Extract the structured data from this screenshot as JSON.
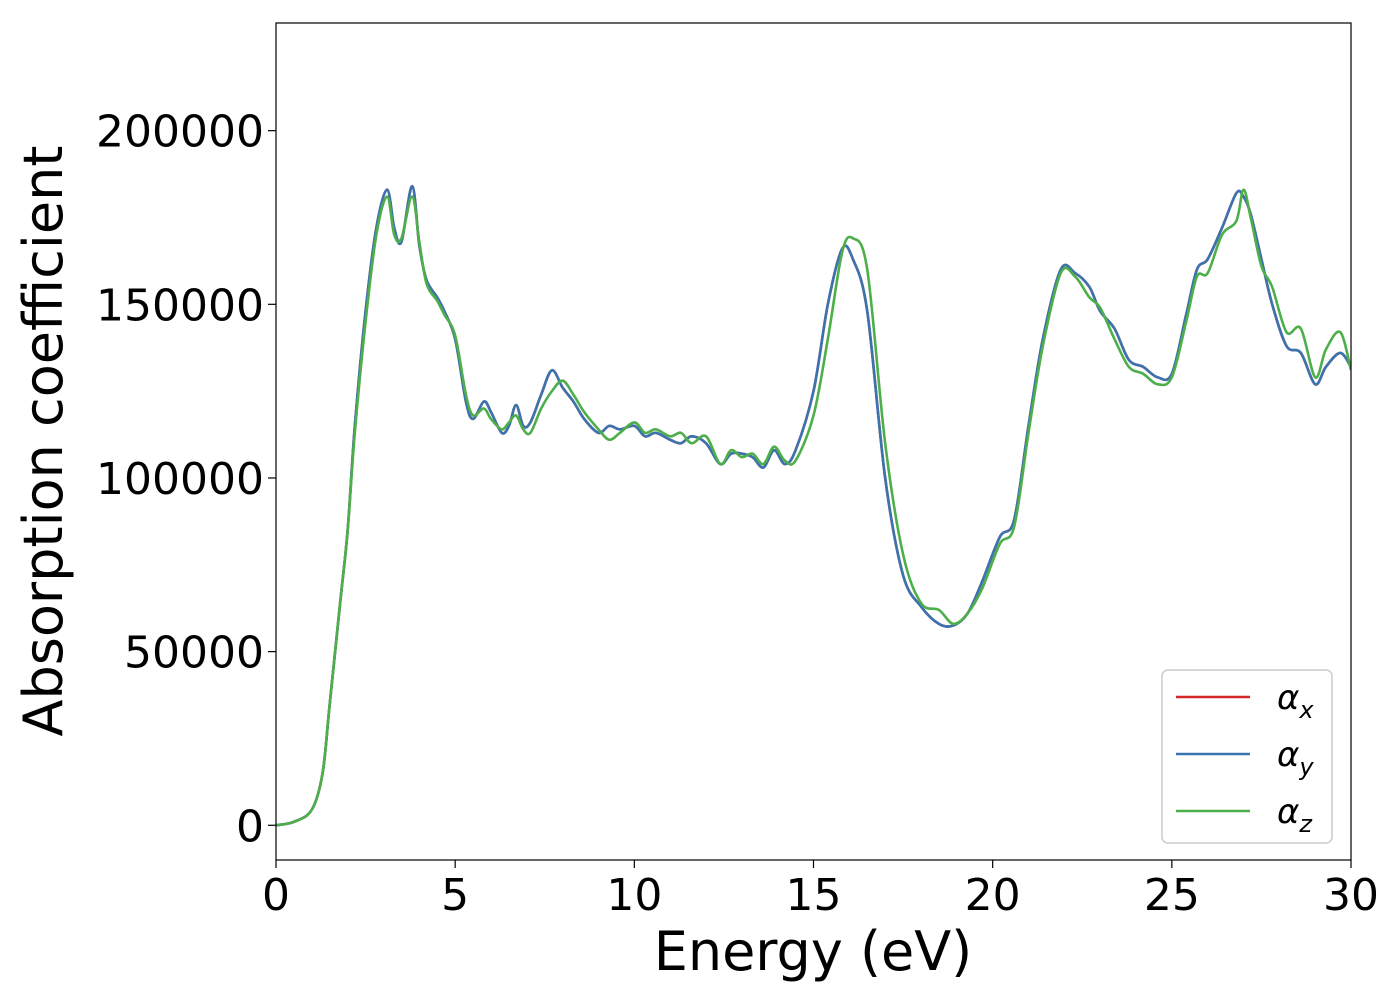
{
  "chart_data": {
    "type": "line",
    "title": "",
    "xlabel": "Energy (eV)",
    "ylabel": "Absorption coefficient",
    "xlim": [
      0,
      30
    ],
    "ylim": [
      -10000,
      231000
    ],
    "xticks": [
      0,
      5,
      10,
      15,
      20,
      25,
      30
    ],
    "yticks": [
      0,
      50000,
      100000,
      150000,
      200000
    ],
    "grid": false,
    "legend_position": "lower-right",
    "series": [
      {
        "name": "α_x",
        "label_main": "α",
        "label_sub": "x",
        "color": "#d62728",
        "x": [
          0,
          0.5,
          1,
          1.3,
          1.5,
          1.8,
          2,
          2.2,
          2.5,
          2.8,
          3.1,
          3.3,
          3.5,
          3.8,
          4,
          4.2,
          4.5,
          4.7,
          5,
          5.3,
          5.5,
          5.8,
          6,
          6.3,
          6.5,
          6.7,
          6.9,
          7.1,
          7.4,
          7.7,
          8,
          8.3,
          8.6,
          9,
          9.3,
          9.6,
          10,
          10.3,
          10.6,
          11,
          11.3,
          11.6,
          12,
          12.4,
          12.7,
          13,
          13.3,
          13.6,
          13.9,
          14.2,
          14.5,
          15,
          15.4,
          15.8,
          16.1,
          16.5,
          17,
          17.5,
          18,
          18.5,
          18.9,
          19.3,
          19.7,
          20.2,
          20.6,
          21,
          21.4,
          21.9,
          22.3,
          22.7,
          23,
          23.4,
          23.8,
          24.2,
          24.6,
          25,
          25.4,
          25.7,
          26,
          26.4,
          26.8,
          27,
          27.2,
          27.5,
          27.8,
          28.2,
          28.6,
          29,
          29.3,
          29.7,
          30
        ],
        "y": [
          0,
          1000,
          4500,
          15000,
          35000,
          65000,
          85000,
          115000,
          148000,
          172000,
          183000,
          172000,
          168000,
          184000,
          167000,
          157000,
          152000,
          148000,
          140000,
          122000,
          117000,
          122000,
          119000,
          113000,
          115000,
          121000,
          115000,
          116000,
          124000,
          131000,
          126000,
          122000,
          117000,
          113000,
          115000,
          114000,
          115000,
          112000,
          113000,
          111000,
          110000,
          112000,
          110000,
          104000,
          107000,
          107000,
          106000,
          103000,
          108000,
          104000,
          108000,
          125000,
          150000,
          166000,
          163000,
          148000,
          100000,
          72000,
          63000,
          58000,
          57500,
          61000,
          70000,
          83000,
          88000,
          115000,
          140000,
          160000,
          159000,
          155000,
          148000,
          143000,
          134000,
          132000,
          129000,
          130000,
          147000,
          160000,
          163000,
          172000,
          182000,
          181000,
          176000,
          163000,
          150000,
          138000,
          136000,
          127000,
          132000,
          136000,
          132000
        ]
      },
      {
        "name": "α_y",
        "label_main": "α",
        "label_sub": "y",
        "color": "#3a74b0",
        "x": [
          0,
          0.5,
          1,
          1.3,
          1.5,
          1.8,
          2,
          2.2,
          2.5,
          2.8,
          3.1,
          3.3,
          3.5,
          3.8,
          4,
          4.2,
          4.5,
          4.7,
          5,
          5.3,
          5.5,
          5.8,
          6,
          6.3,
          6.5,
          6.7,
          6.9,
          7.1,
          7.4,
          7.7,
          8,
          8.3,
          8.6,
          9,
          9.3,
          9.6,
          10,
          10.3,
          10.6,
          11,
          11.3,
          11.6,
          12,
          12.4,
          12.7,
          13,
          13.3,
          13.6,
          13.9,
          14.2,
          14.5,
          15,
          15.4,
          15.8,
          16.1,
          16.5,
          17,
          17.5,
          18,
          18.5,
          18.9,
          19.3,
          19.7,
          20.2,
          20.6,
          21,
          21.4,
          21.9,
          22.3,
          22.7,
          23,
          23.4,
          23.8,
          24.2,
          24.6,
          25,
          25.4,
          25.7,
          26,
          26.4,
          26.8,
          27,
          27.2,
          27.5,
          27.8,
          28.2,
          28.6,
          29,
          29.3,
          29.7,
          30
        ],
        "y": [
          0,
          1000,
          4500,
          15000,
          35000,
          65000,
          85000,
          115000,
          148000,
          172000,
          183000,
          172000,
          168000,
          184000,
          167000,
          157000,
          152000,
          148000,
          140000,
          122000,
          117000,
          122000,
          119000,
          113000,
          115000,
          121000,
          115000,
          116000,
          124000,
          131000,
          126000,
          122000,
          117000,
          113000,
          115000,
          114000,
          115000,
          112000,
          113000,
          111000,
          110000,
          112000,
          110000,
          104000,
          107000,
          107000,
          106000,
          103000,
          108000,
          104000,
          108000,
          125000,
          150000,
          166000,
          163000,
          148000,
          100000,
          72000,
          63000,
          58000,
          57500,
          61000,
          70000,
          83000,
          88000,
          115000,
          140000,
          160000,
          159000,
          155000,
          148000,
          143000,
          134000,
          132000,
          129000,
          130000,
          147000,
          160000,
          163000,
          172000,
          182000,
          181000,
          176000,
          163000,
          150000,
          138000,
          136000,
          127000,
          132000,
          136000,
          132000
        ]
      },
      {
        "name": "α_z",
        "label_main": "α",
        "label_sub": "z",
        "color": "#4daf4a",
        "x": [
          0,
          0.5,
          1,
          1.3,
          1.5,
          1.8,
          2,
          2.2,
          2.5,
          2.8,
          3.1,
          3.3,
          3.5,
          3.8,
          4,
          4.2,
          4.5,
          4.7,
          5,
          5.3,
          5.5,
          5.8,
          6,
          6.3,
          6.5,
          6.7,
          6.9,
          7.1,
          7.4,
          7.7,
          8,
          8.3,
          8.6,
          9,
          9.3,
          9.6,
          10,
          10.3,
          10.6,
          11,
          11.3,
          11.6,
          12,
          12.4,
          12.7,
          13,
          13.3,
          13.6,
          13.9,
          14.2,
          14.5,
          15,
          15.4,
          15.8,
          16.1,
          16.5,
          17,
          17.5,
          18,
          18.5,
          18.9,
          19.3,
          19.7,
          20.2,
          20.6,
          21,
          21.4,
          21.9,
          22.3,
          22.7,
          23,
          23.4,
          23.8,
          24.2,
          24.6,
          25,
          25.4,
          25.7,
          26,
          26.4,
          26.8,
          27,
          27.2,
          27.5,
          27.8,
          28.2,
          28.6,
          29,
          29.3,
          29.7,
          30
        ],
        "y": [
          0,
          1000,
          4500,
          15000,
          35000,
          65000,
          85000,
          113000,
          145000,
          170000,
          181000,
          170000,
          169000,
          181000,
          168000,
          156000,
          151000,
          147000,
          141000,
          124000,
          118000,
          120000,
          117000,
          114000,
          116000,
          118000,
          114000,
          113000,
          120000,
          125000,
          128000,
          124000,
          119000,
          114000,
          111000,
          113000,
          116000,
          113000,
          114000,
          112000,
          113000,
          110000,
          112000,
          104000,
          108000,
          106000,
          107000,
          104000,
          109000,
          105000,
          105000,
          118000,
          140000,
          165000,
          169000,
          160000,
          110000,
          78000,
          64000,
          62000,
          58000,
          61000,
          68000,
          81000,
          86000,
          113000,
          138000,
          159000,
          158000,
          152000,
          149000,
          140000,
          132000,
          130000,
          127000,
          129000,
          145000,
          158000,
          159000,
          170000,
          174000,
          183000,
          175000,
          161000,
          155000,
          142000,
          143000,
          129000,
          137000,
          142000,
          131000
        ]
      }
    ]
  }
}
